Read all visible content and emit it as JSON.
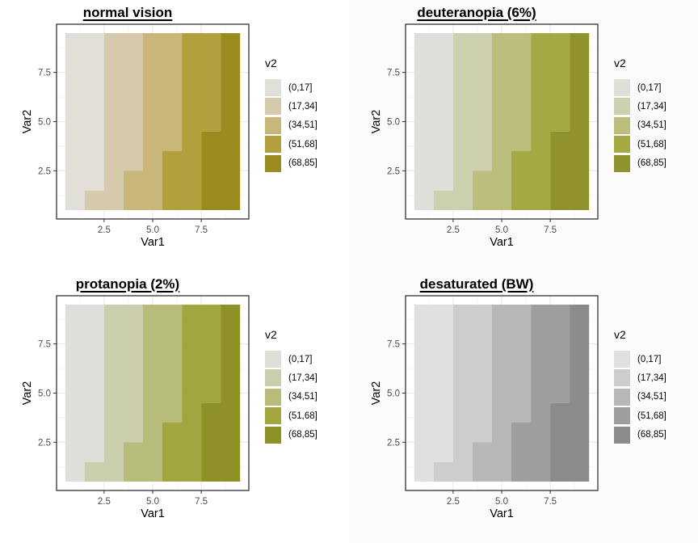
{
  "page": {
    "background": "#ffffff"
  },
  "axes": {
    "x_label": "Var1",
    "y_label": "Var2",
    "x_tick_labels": [
      "2.5",
      "5.0",
      "7.5"
    ],
    "y_tick_labels": [
      "2.5",
      "5.0",
      "7.5"
    ]
  },
  "legend": {
    "title": "v2",
    "labels": [
      "(0,17]",
      "(17,34]",
      "(34,51]",
      "(51,68]",
      "(68,85]"
    ]
  },
  "panels": [
    {
      "title": "normal vision",
      "bg": "#ffffff",
      "colors": [
        "#e2dfd9",
        "#d5caac",
        "#c8b779",
        "#b1a03c",
        "#9a8b1e"
      ]
    },
    {
      "title": "deuteranopia (6%)",
      "bg": "#fafafa",
      "colors": [
        "#dedfd8",
        "#cdd0ae",
        "#bbbe7c",
        "#a5a943",
        "#90932d"
      ]
    },
    {
      "title": "protanopia (2%)",
      "bg": "#ffffff",
      "colors": [
        "#dedfd8",
        "#cbcead",
        "#b8bc7b",
        "#a1a63f",
        "#8d9126"
      ]
    },
    {
      "title": "desaturated (BW)",
      "bg": "#fcfcfc",
      "colors": [
        "#e0e0e0",
        "#cdcdcd",
        "#b7b7b7",
        "#9e9e9e",
        "#8b8b8b"
      ]
    }
  ],
  "chart_data": {
    "type": "heatmap",
    "layout": "2x2 grid of the same binned tile plot rendered under four color-vision simulations",
    "panel_titles": [
      "normal vision",
      "deuteranopia (6%)",
      "protanopia (2%)",
      "desaturated (BW)"
    ],
    "xlabel": "Var1",
    "ylabel": "Var2",
    "x_ticks": [
      2.5,
      5.0,
      7.5
    ],
    "y_ticks": [
      2.5,
      5.0,
      7.5
    ],
    "x_range": [
      0.5,
      9.5
    ],
    "y_range": [
      0.5,
      9.5
    ],
    "grid_minor_ticks": [
      1.25,
      3.75,
      6.25,
      8.75
    ],
    "var1_values": [
      1,
      2,
      3,
      4,
      5,
      6,
      7,
      8,
      9
    ],
    "var2_values": [
      1,
      2,
      3,
      4,
      5,
      6,
      7,
      8,
      9
    ],
    "legend_title": "v2",
    "bins": [
      "(0,17]",
      "(17,34]",
      "(34,51]",
      "(51,68]",
      "(68,85]"
    ],
    "bin_grid_var2_rows_1_to_9": [
      [
        1,
        2,
        2,
        3,
        3,
        4,
        4,
        5,
        5
      ],
      [
        1,
        1,
        2,
        3,
        3,
        4,
        4,
        5,
        5
      ],
      [
        1,
        1,
        2,
        2,
        3,
        4,
        4,
        5,
        5
      ],
      [
        1,
        1,
        2,
        2,
        3,
        3,
        4,
        5,
        5
      ],
      [
        1,
        1,
        2,
        2,
        3,
        3,
        4,
        4,
        5
      ],
      [
        1,
        1,
        2,
        2,
        3,
        3,
        4,
        4,
        5
      ],
      [
        1,
        1,
        2,
        2,
        3,
        3,
        4,
        4,
        5
      ],
      [
        1,
        1,
        2,
        2,
        3,
        3,
        4,
        4,
        5
      ],
      [
        1,
        1,
        2,
        2,
        3,
        3,
        4,
        4,
        5
      ]
    ],
    "region_boundaries": [
      {
        "between_bins": [
          1,
          2
        ],
        "x_below": 1.5,
        "x_above": 2.5,
        "y_step": 1.5
      },
      {
        "between_bins": [
          2,
          3
        ],
        "x_below": 3.5,
        "x_above": 4.5,
        "y_step": 2.5
      },
      {
        "between_bins": [
          3,
          4
        ],
        "x_below": 5.5,
        "x_above": 6.5,
        "y_step": 3.5
      },
      {
        "between_bins": [
          4,
          5
        ],
        "x_below": 7.5,
        "x_above": 8.5,
        "y_step": 4.5
      }
    ]
  },
  "style": {
    "grid_major": "#e8e8e8",
    "grid_minor": "#f2f2f2",
    "panel_border": "#333333",
    "tick_color": "#333333",
    "tick_label_color": "#4d4d4d",
    "panel_bg": "#ffffff"
  }
}
